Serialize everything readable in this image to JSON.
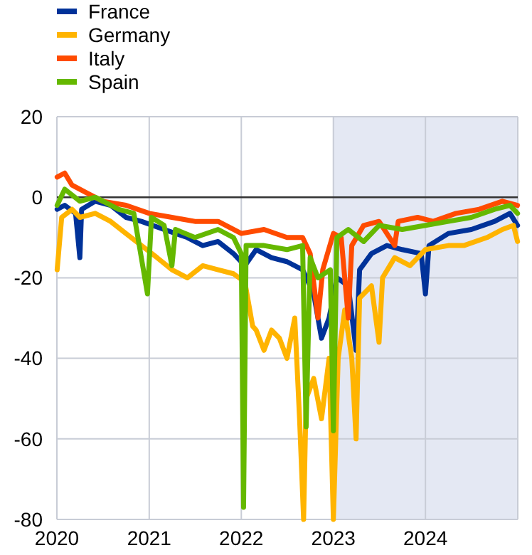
{
  "chart_data": {
    "type": "line",
    "xlim": [
      "2020-01-01",
      "2025-01-01"
    ],
    "xticks": [
      {
        "value": "2020-01-01",
        "label": "2020"
      },
      {
        "value": "2021-01-01",
        "label": "2021"
      },
      {
        "value": "2022-01-01",
        "label": "2022"
      },
      {
        "value": "2023-01-01",
        "label": "2023"
      },
      {
        "value": "2024-01-01",
        "label": "2024"
      }
    ],
    "ylim": [
      -80,
      20
    ],
    "yticks": [
      -80,
      -60,
      -40,
      -20,
      0,
      20
    ],
    "grid": true,
    "legend": "top left",
    "line_style": "solid",
    "marker": "none",
    "ref_lines": [
      {
        "axis": "y",
        "value": 0,
        "color": "#333333"
      }
    ],
    "bands": [
      {
        "axis": "x",
        "from": "2023-01-01",
        "to": "2025-01-01",
        "color": "#e4e8f3"
      }
    ],
    "series": [
      {
        "name": "France",
        "color": "#003299",
        "x": [
          "2020-01-02",
          "2020-02-01",
          "2020-03-15",
          "2020-04-01",
          "2020-04-08",
          "2020-06-01",
          "2020-08-01",
          "2020-10-01",
          "2020-12-01",
          "2021-03-01",
          "2021-06-01",
          "2021-08-01",
          "2021-10-01",
          "2021-12-01",
          "2022-01-15",
          "2022-03-01",
          "2022-05-01",
          "2022-07-01",
          "2022-09-01",
          "2022-10-15",
          "2022-11-15",
          "2022-12-15",
          "2023-01-15",
          "2023-03-01",
          "2023-04-01",
          "2023-04-15",
          "2023-06-01",
          "2023-08-01",
          "2023-10-01",
          "2023-12-15",
          "2024-01-01",
          "2024-01-15",
          "2024-04-01",
          "2024-07-01",
          "2024-10-01",
          "2024-12-01",
          "2024-12-31"
        ],
        "values": [
          -3,
          -2,
          -4,
          -15,
          -3,
          -1,
          -2,
          -5,
          -6,
          -8,
          -10,
          -12,
          -11,
          -14,
          -17,
          -13,
          -15,
          -16,
          -18,
          -24,
          -35,
          -30,
          -20,
          -22,
          -38,
          -18,
          -14,
          -12,
          -13,
          -14,
          -24,
          -12,
          -9,
          -8,
          -6,
          -4,
          -7
        ]
      },
      {
        "name": "Germany",
        "color": "#ffb400",
        "x": [
          "2020-01-02",
          "2020-01-20",
          "2020-03-01",
          "2020-04-01",
          "2020-06-01",
          "2020-08-01",
          "2020-10-01",
          "2020-12-01",
          "2021-02-01",
          "2021-04-01",
          "2021-06-01",
          "2021-08-01",
          "2021-10-01",
          "2021-12-01",
          "2022-01-15",
          "2022-02-15",
          "2022-03-01",
          "2022-04-01",
          "2022-05-01",
          "2022-06-01",
          "2022-07-01",
          "2022-08-01",
          "2022-08-20",
          "2022-09-05",
          "2022-09-15",
          "2022-10-15",
          "2022-11-15",
          "2022-12-15",
          "2023-01-01",
          "2023-01-20",
          "2023-02-15",
          "2023-03-15",
          "2023-04-01",
          "2023-04-15",
          "2023-06-01",
          "2023-07-01",
          "2023-07-15",
          "2023-09-01",
          "2023-11-01",
          "2024-01-01",
          "2024-04-01",
          "2024-06-01",
          "2024-09-01",
          "2024-11-01",
          "2024-12-15",
          "2024-12-31"
        ],
        "values": [
          -18,
          -5,
          -3,
          -5,
          -4,
          -6,
          -9,
          -12,
          -15,
          -18,
          -20,
          -17,
          -18,
          -19,
          -21,
          -32,
          -33,
          -38,
          -33,
          -35,
          -40,
          -30,
          -55,
          -80,
          -50,
          -45,
          -55,
          -40,
          -80,
          -40,
          -28,
          -40,
          -60,
          -25,
          -22,
          -36,
          -20,
          -15,
          -17,
          -13,
          -12,
          -12,
          -10,
          -8,
          -7,
          -11
        ]
      },
      {
        "name": "Italy",
        "color": "#ff4b00",
        "x": [
          "2020-01-02",
          "2020-02-01",
          "2020-03-01",
          "2020-05-01",
          "2020-07-01",
          "2020-10-01",
          "2021-01-01",
          "2021-04-01",
          "2021-07-01",
          "2021-10-01",
          "2022-01-01",
          "2022-04-01",
          "2022-07-01",
          "2022-09-01",
          "2022-10-01",
          "2022-11-01",
          "2022-11-20",
          "2023-01-01",
          "2023-02-01",
          "2023-03-01",
          "2023-03-15",
          "2023-05-01",
          "2023-07-01",
          "2023-09-01",
          "2023-09-15",
          "2023-12-01",
          "2024-02-01",
          "2024-05-01",
          "2024-08-01",
          "2024-11-01",
          "2024-12-31"
        ],
        "values": [
          5,
          6,
          3,
          1,
          -1,
          -2,
          -4,
          -5,
          -6,
          -6,
          -9,
          -8,
          -10,
          -10,
          -14,
          -30,
          -18,
          -9,
          -10,
          -30,
          -12,
          -7,
          -6,
          -12,
          -6,
          -5,
          -6,
          -4,
          -3,
          -1,
          -2
        ]
      },
      {
        "name": "Spain",
        "color": "#65b800",
        "x": [
          "2020-01-02",
          "2020-02-01",
          "2020-04-01",
          "2020-06-01",
          "2020-09-01",
          "2020-11-01",
          "2020-12-25",
          "2021-01-10",
          "2021-03-01",
          "2021-04-01",
          "2021-04-15",
          "2021-07-01",
          "2021-10-01",
          "2021-12-01",
          "2022-01-01",
          "2022-01-10",
          "2022-01-20",
          "2022-04-01",
          "2022-07-01",
          "2022-09-01",
          "2022-09-15",
          "2022-10-01",
          "2022-11-01",
          "2022-12-20",
          "2023-01-01",
          "2023-01-15",
          "2023-03-01",
          "2023-05-01",
          "2023-07-01",
          "2023-10-01",
          "2024-01-01",
          "2024-04-01",
          "2024-07-01",
          "2024-10-01",
          "2024-12-01",
          "2024-12-31"
        ],
        "values": [
          -2,
          2,
          -1,
          0,
          -3,
          -4,
          -24,
          -5,
          -7,
          -17,
          -8,
          -10,
          -8,
          -10,
          -14,
          -77,
          -12,
          -12,
          -13,
          -12,
          -57,
          -15,
          -20,
          -18,
          -58,
          -10,
          -8,
          -11,
          -7,
          -8,
          -7,
          -6,
          -5,
          -3,
          -2,
          -4
        ]
      }
    ]
  }
}
